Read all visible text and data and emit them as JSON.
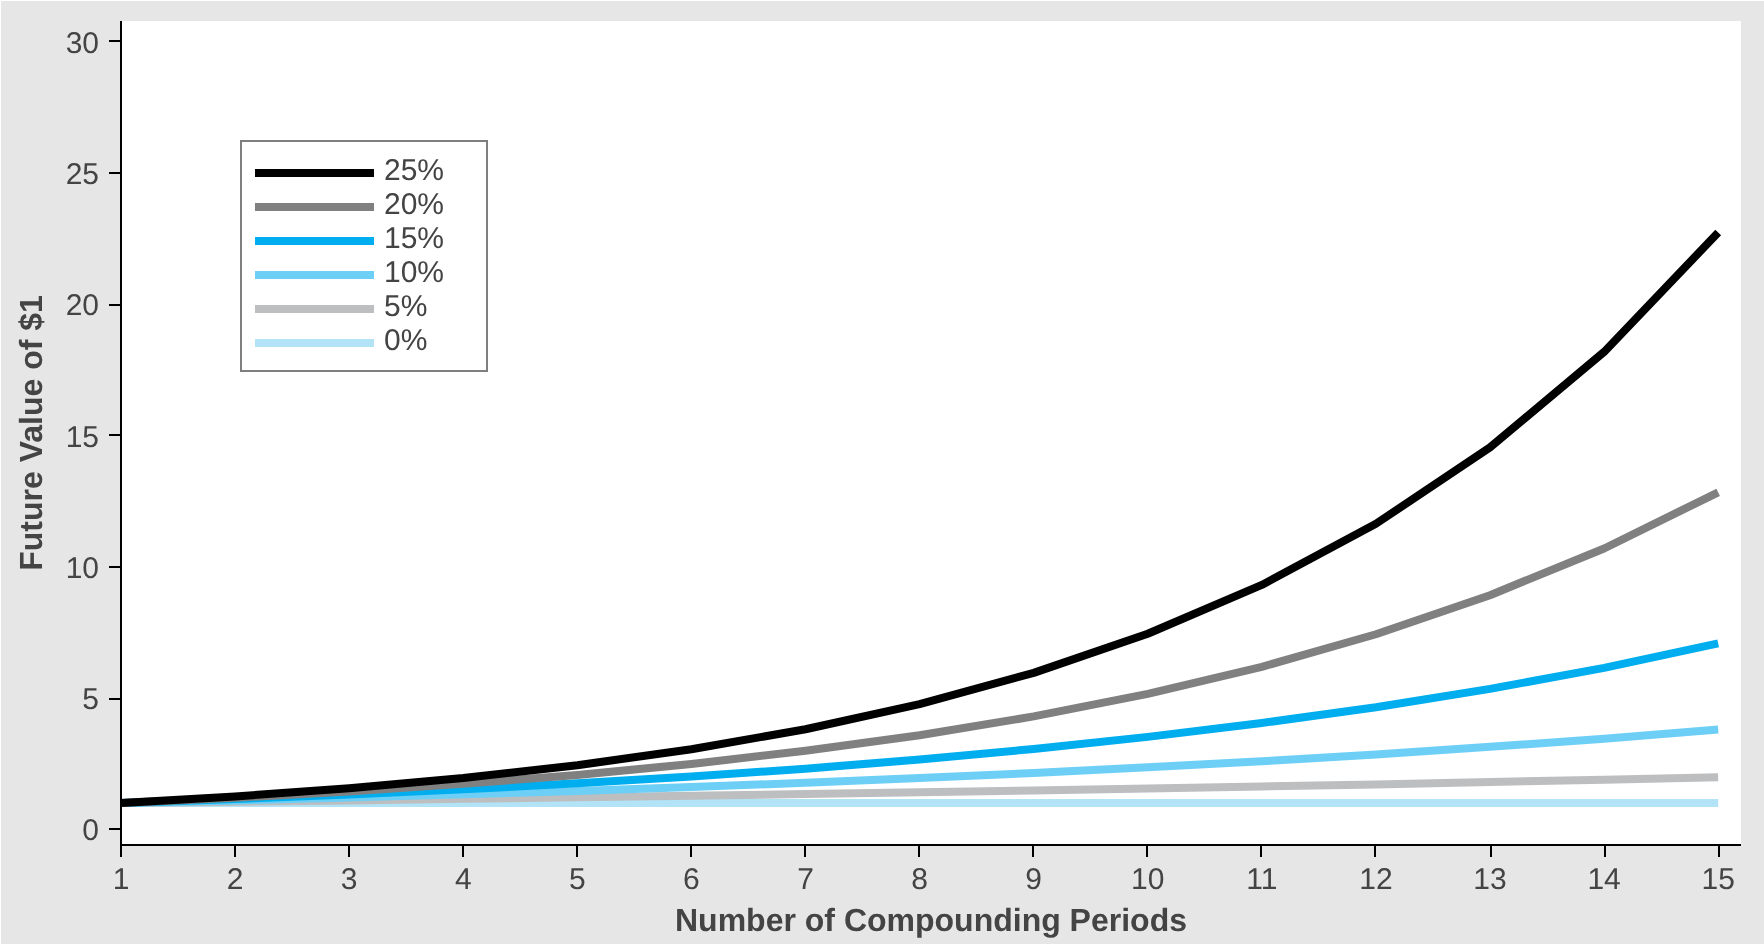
{
  "chart_data": {
    "type": "line",
    "xlabel": "Number of Compounding Periods",
    "ylabel": "Future Value of $1",
    "x": [
      1,
      2,
      3,
      4,
      5,
      6,
      7,
      8,
      9,
      10,
      11,
      12,
      13,
      14,
      15
    ],
    "xlim": [
      1,
      15.2
    ],
    "ylim": [
      -0.6,
      30.8
    ],
    "xticks": [
      1,
      2,
      3,
      4,
      5,
      6,
      7,
      8,
      9,
      10,
      11,
      12,
      13,
      14,
      15
    ],
    "yticks": [
      0,
      5,
      10,
      15,
      20,
      25,
      30
    ],
    "grid": false,
    "legend": "top left",
    "marker": "none",
    "line_style": "solid",
    "series": [
      {
        "name": "25%",
        "color": "#000000",
        "values": [
          1,
          1.25,
          1.56,
          1.95,
          2.44,
          3.05,
          3.81,
          4.77,
          5.96,
          7.45,
          9.31,
          11.64,
          14.55,
          18.19,
          22.74
        ]
      },
      {
        "name": "20%",
        "color": "#808080",
        "values": [
          1,
          1.2,
          1.44,
          1.73,
          2.07,
          2.49,
          2.99,
          3.58,
          4.3,
          5.16,
          6.19,
          7.43,
          8.92,
          10.7,
          12.84
        ]
      },
      {
        "name": "15%",
        "color": "#00aeef",
        "values": [
          1,
          1.15,
          1.32,
          1.52,
          1.75,
          2.01,
          2.31,
          2.66,
          3.06,
          3.52,
          4.05,
          4.65,
          5.35,
          6.15,
          7.08
        ]
      },
      {
        "name": "10%",
        "color": "#6dcff6",
        "values": [
          1,
          1.1,
          1.21,
          1.33,
          1.46,
          1.61,
          1.77,
          1.95,
          2.14,
          2.36,
          2.59,
          2.85,
          3.14,
          3.45,
          3.8
        ]
      },
      {
        "name": "5%",
        "color": "#bcbec0",
        "values": [
          1,
          1.05,
          1.1,
          1.16,
          1.22,
          1.28,
          1.34,
          1.41,
          1.48,
          1.55,
          1.63,
          1.71,
          1.8,
          1.89,
          1.98
        ]
      },
      {
        "name": "0%",
        "color": "#b3e3f7",
        "values": [
          1,
          1,
          1,
          1,
          1,
          1,
          1,
          1,
          1,
          1,
          1,
          1,
          1,
          1,
          1
        ]
      }
    ]
  }
}
